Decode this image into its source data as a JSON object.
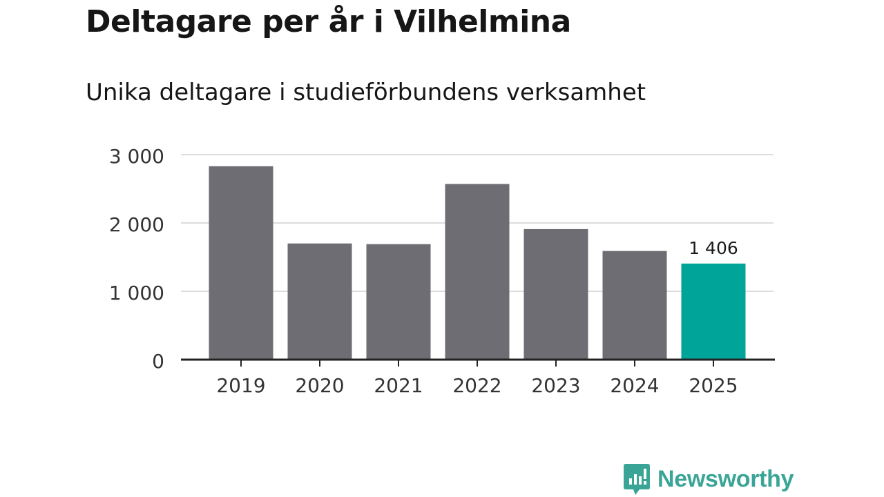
{
  "title": "Deltagare per år i Vilhelmina",
  "subtitle": "Unika deltagare i studieförbundens verksamhet",
  "brand": {
    "name": "Newsworthy",
    "color": "#3aa597",
    "icon": "newsworthy-logo-icon"
  },
  "colors": {
    "bar": "#6e6d73",
    "highlight": "#00a499",
    "grid": "#dcdcdc",
    "axis": "#222222"
  },
  "chart_data": {
    "type": "bar",
    "title": "Deltagare per år i Vilhelmina",
    "subtitle": "Unika deltagare i studieförbundens verksamhet",
    "categories": [
      "2019",
      "2020",
      "2021",
      "2022",
      "2023",
      "2024",
      "2025"
    ],
    "values": [
      2830,
      1700,
      1690,
      2570,
      1910,
      1590,
      1406
    ],
    "highlight_index": 6,
    "data_labels": [
      {
        "index": 6,
        "text": "1 406"
      }
    ],
    "ylim": [
      0,
      3000
    ],
    "yticks": [
      0,
      1000,
      2000,
      3000
    ],
    "ytick_labels": [
      "0",
      "1 000",
      "2 000",
      "3 000"
    ],
    "xlabel": "",
    "ylabel": "",
    "grid": true
  }
}
